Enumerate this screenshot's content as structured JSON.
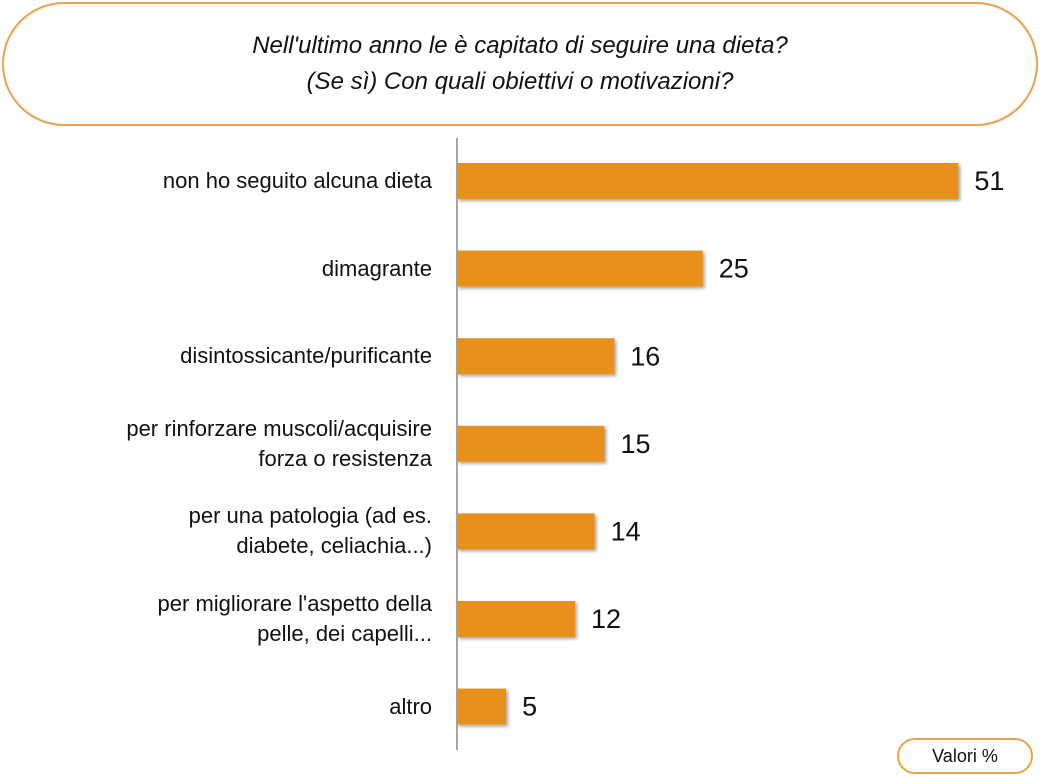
{
  "chart_data": {
    "type": "bar",
    "orientation": "horizontal",
    "title": "Nell'ultimo anno le è capitato di seguire una dieta?\n(Se sì) Con quali obiettivi o motivazioni?",
    "categories": [
      "non ho seguito alcuna dieta",
      "dimagrante",
      "disintossicante/purificante",
      "per rinforzare muscoli/acquisire\nforza o resistenza",
      "per una patologia (ad es.\ndiabete, celiachia...)",
      "per migliorare l'aspetto della\npelle, dei capelli...",
      "altro"
    ],
    "values": [
      51,
      25,
      16,
      15,
      14,
      12,
      5
    ],
    "color": "#e8901f",
    "note": "Valori %"
  }
}
